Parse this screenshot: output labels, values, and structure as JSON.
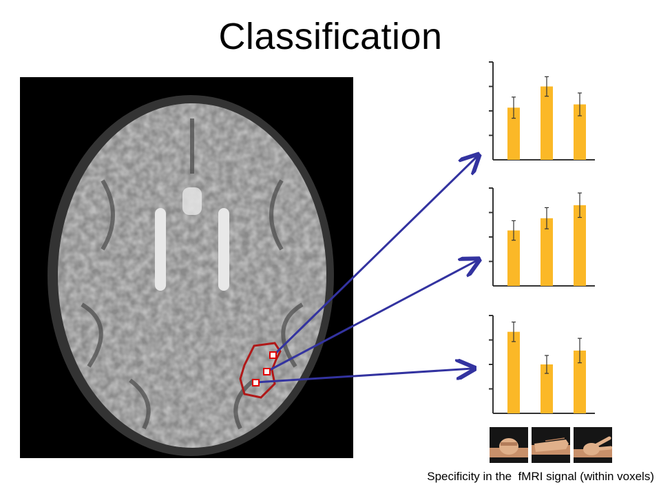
{
  "slide": {
    "title": "Classification",
    "caption": "Specificity in the  fMRI signal (within voxels)"
  },
  "colors": {
    "bar": "#fbb827",
    "arrow": "#3333a0",
    "roi_outline": "#b01818",
    "voxel_marker": "#e00000",
    "axis": "#333333"
  },
  "chart_data": [
    {
      "type": "bar",
      "categories": [
        "",
        "",
        ""
      ],
      "values": [
        0.64,
        0.9,
        0.68
      ],
      "errors": [
        0.13,
        0.12,
        0.14
      ],
      "ylim": [
        0,
        1.2
      ],
      "xlabel": "",
      "ylabel": ""
    },
    {
      "type": "bar",
      "categories": [
        "",
        "",
        ""
      ],
      "values": [
        0.68,
        0.83,
        0.99
      ],
      "errors": [
        0.12,
        0.13,
        0.15
      ],
      "ylim": [
        0,
        1.2
      ],
      "xlabel": "",
      "ylabel": ""
    },
    {
      "type": "bar",
      "categories": [
        "",
        "",
        ""
      ],
      "values": [
        1.0,
        0.6,
        0.77
      ],
      "errors": [
        0.12,
        0.11,
        0.15
      ],
      "ylim": [
        0,
        1.2
      ],
      "xlabel": "",
      "ylabel": ""
    }
  ],
  "hand_gestures": [
    {
      "icon": "rock-fist-icon"
    },
    {
      "icon": "paper-open-hand-icon"
    },
    {
      "icon": "scissors-hand-icon"
    }
  ]
}
